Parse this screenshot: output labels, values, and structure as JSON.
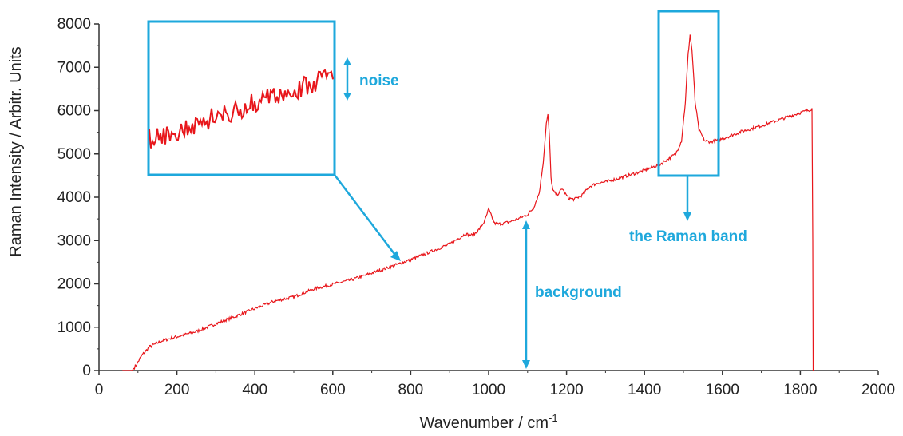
{
  "chart_data": {
    "type": "line",
    "xlabel": "Wavenumber / cm",
    "xlabel_sup": "-1",
    "ylabel": "Raman Intensity / Arbitr. Units",
    "xlim": [
      0,
      2000
    ],
    "ylim": [
      0,
      8000
    ],
    "xticks": [
      "0",
      "200",
      "400",
      "600",
      "800",
      "1000",
      "1200",
      "1400",
      "1600",
      "1800",
      "2000"
    ],
    "yticks": [
      "0",
      "1000",
      "2000",
      "3000",
      "4000",
      "5000",
      "6000",
      "7000",
      "8000"
    ],
    "grid": false,
    "series": [
      {
        "color": "#e8161b",
        "x": [
          60,
          85,
          95,
          110,
          130,
          160,
          200,
          250,
          300,
          350,
          400,
          450,
          500,
          550,
          600,
          650,
          700,
          750,
          800,
          850,
          900,
          940,
          960,
          975,
          990,
          1000,
          1008,
          1015,
          1025,
          1040,
          1060,
          1080,
          1100,
          1115,
          1130,
          1140,
          1148,
          1152,
          1156,
          1160,
          1165,
          1175,
          1185,
          1190,
          1195,
          1205,
          1220,
          1240,
          1260,
          1280,
          1300,
          1350,
          1400,
          1440,
          1460,
          1480,
          1495,
          1505,
          1512,
          1517,
          1522,
          1530,
          1540,
          1555,
          1570,
          1600,
          1650,
          1700,
          1750,
          1800,
          1825,
          1830,
          1832,
          1833
        ],
        "y": [
          0,
          0,
          120,
          350,
          550,
          680,
          780,
          900,
          1080,
          1250,
          1430,
          1600,
          1700,
          1880,
          1990,
          2100,
          2250,
          2400,
          2560,
          2740,
          2920,
          3150,
          3120,
          3250,
          3450,
          3720,
          3550,
          3400,
          3380,
          3400,
          3450,
          3520,
          3600,
          3750,
          4100,
          4800,
          5700,
          5900,
          5400,
          4450,
          4150,
          4050,
          4150,
          4200,
          4100,
          3980,
          3950,
          4050,
          4250,
          4330,
          4350,
          4480,
          4620,
          4760,
          4880,
          5000,
          5300,
          6200,
          7300,
          7750,
          7400,
          6200,
          5550,
          5300,
          5280,
          5350,
          5520,
          5650,
          5800,
          5950,
          6020,
          6050,
          3000,
          0
        ]
      }
    ],
    "annotations": {
      "noise": "noise",
      "band": "the Raman band",
      "background": "background"
    }
  },
  "colors": {
    "signal": "#e8161b",
    "annotation": "#1ea8dc",
    "axis": "#333333"
  }
}
